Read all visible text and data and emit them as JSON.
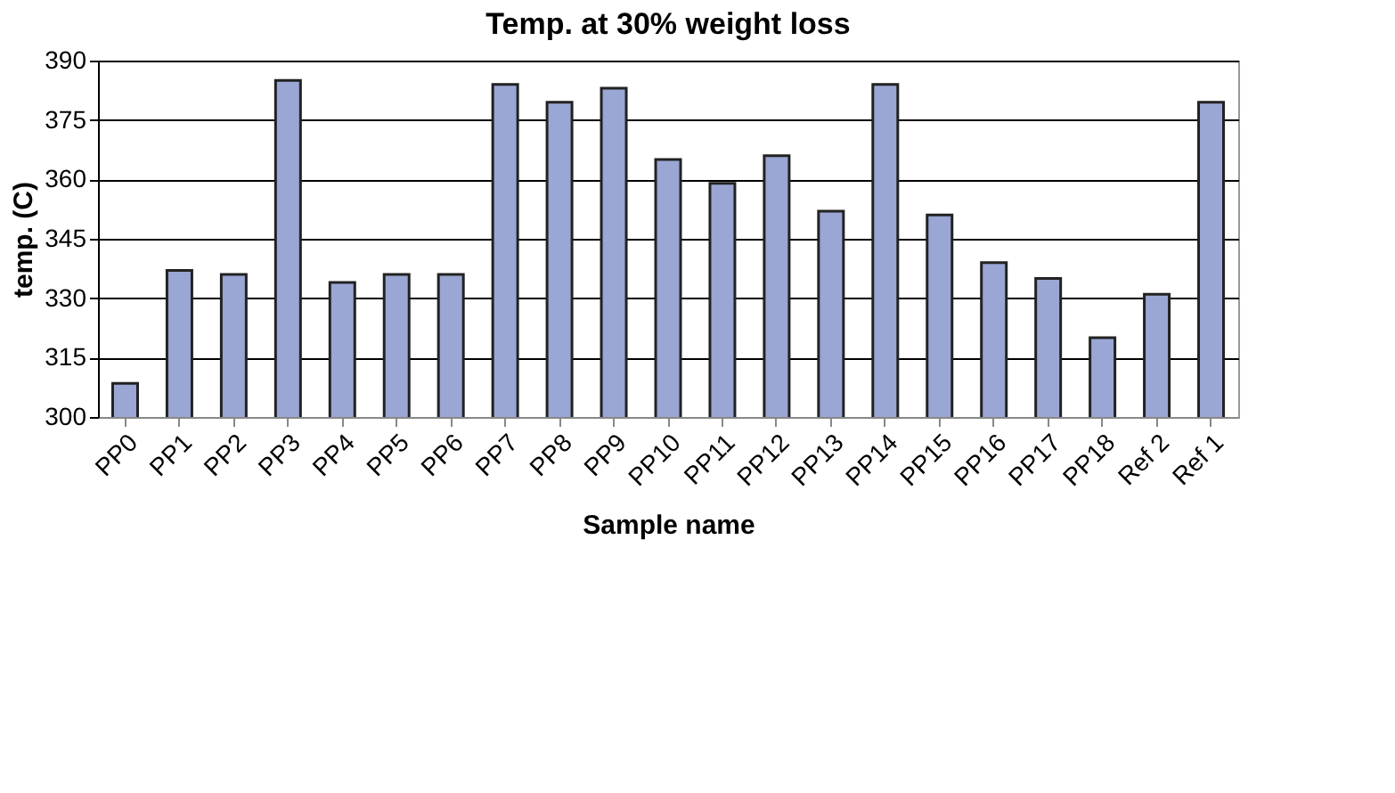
{
  "chart_data": {
    "type": "bar",
    "title": "Temp. at 30% weight loss",
    "xlabel": "Sample name",
    "ylabel": "temp. (C)",
    "categories": [
      "PP0",
      "PP1",
      "PP2",
      "PP3",
      "PP4",
      "PP5",
      "PP6",
      "PP7",
      "PP8",
      "PP9",
      "PP10",
      "PP11",
      "PP12",
      "PP13",
      "PP14",
      "PP15",
      "PP16",
      "PP17",
      "PP18",
      "Ref 2",
      "Ref 1"
    ],
    "values": [
      308.5,
      337,
      336,
      385,
      334,
      336,
      336,
      384,
      379.5,
      383,
      365,
      359,
      366,
      352,
      384,
      351,
      339,
      335,
      320,
      331,
      379.5
    ],
    "color": "#9aa6d4",
    "ylim": [
      300,
      390
    ],
    "yticks": [
      300,
      315,
      330,
      345,
      360,
      375,
      390
    ],
    "grid": "y"
  }
}
